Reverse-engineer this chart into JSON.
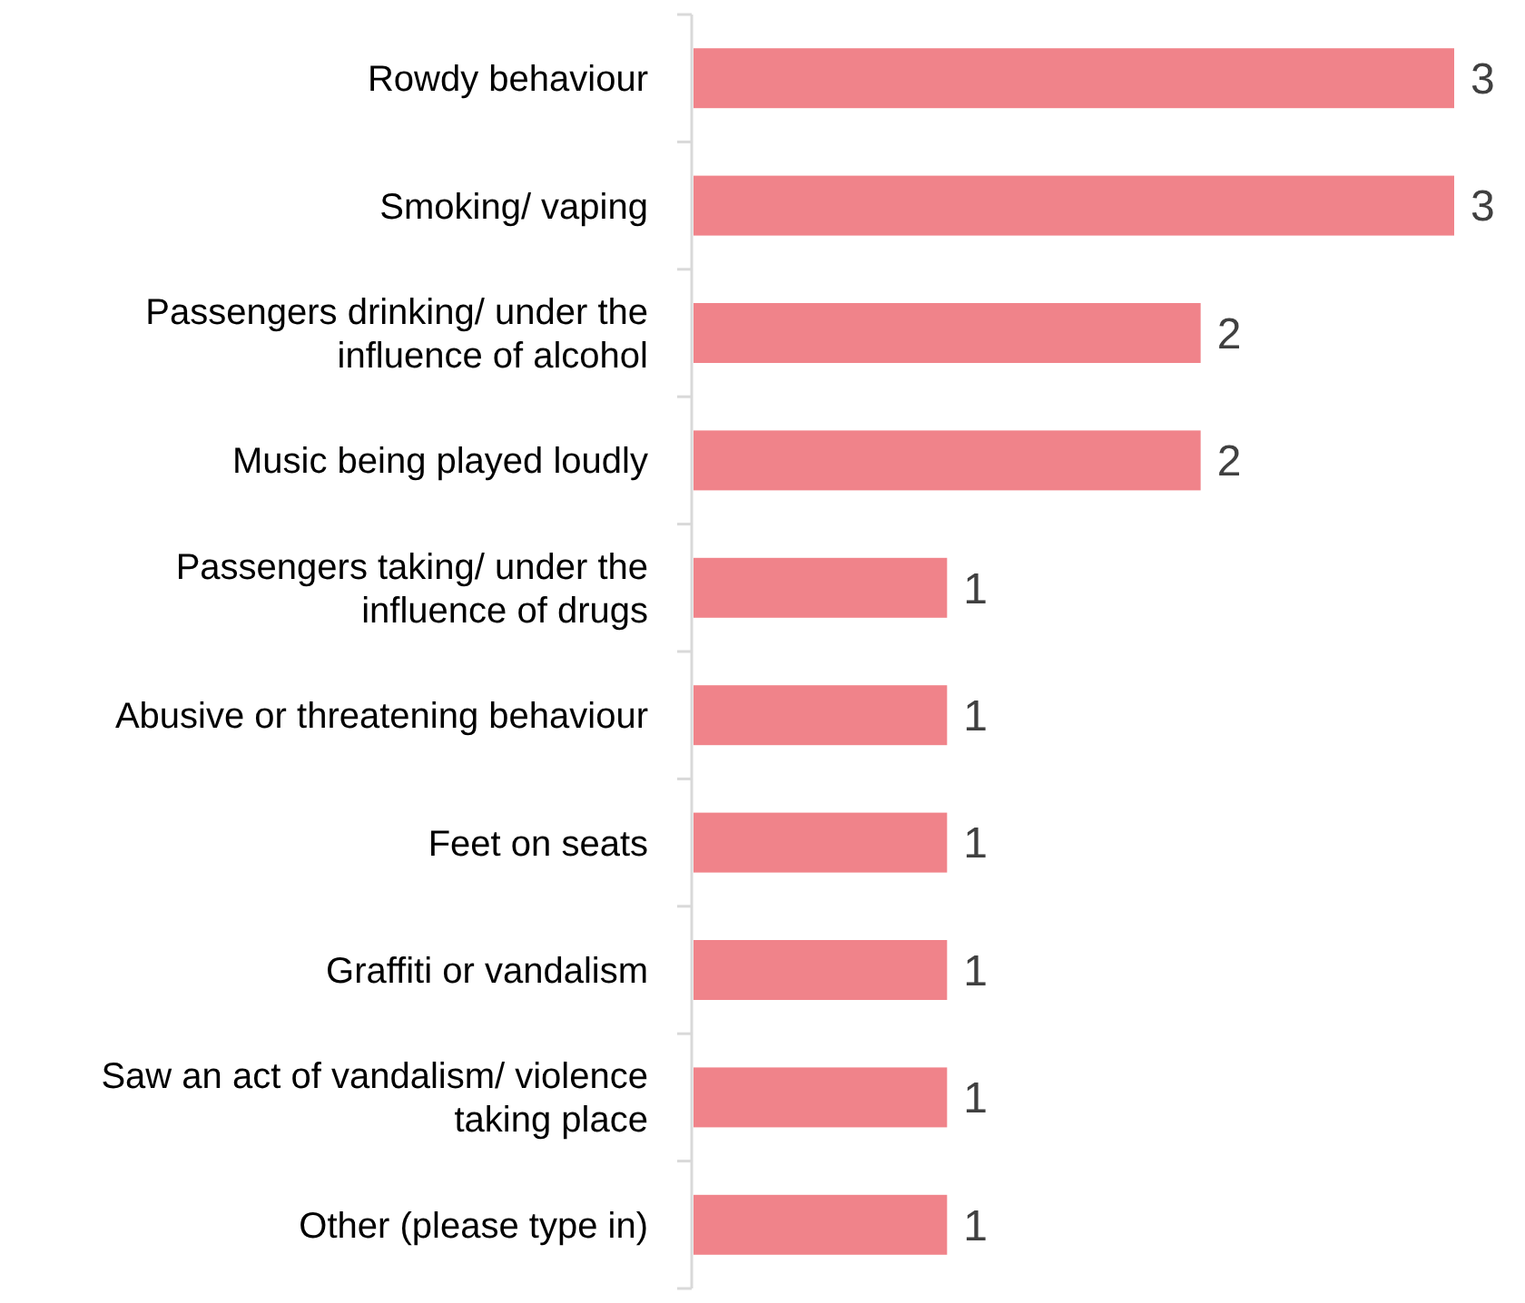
{
  "chart_data": {
    "type": "bar",
    "orientation": "horizontal",
    "categories": [
      "Rowdy behaviour",
      "Smoking/ vaping",
      "Passengers drinking/ under the influence of alcohol",
      "Music being played loudly",
      "Passengers taking/ under the influence of drugs",
      "Abusive or threatening behaviour",
      "Feet on seats",
      "Graffiti or vandalism",
      "Saw an act of vandalism/ violence taking place",
      "Other (please type in)"
    ],
    "values": [
      3,
      3,
      2,
      2,
      1,
      1,
      1,
      1,
      1,
      1
    ],
    "color": "#f0838a",
    "data_labels": true
  }
}
